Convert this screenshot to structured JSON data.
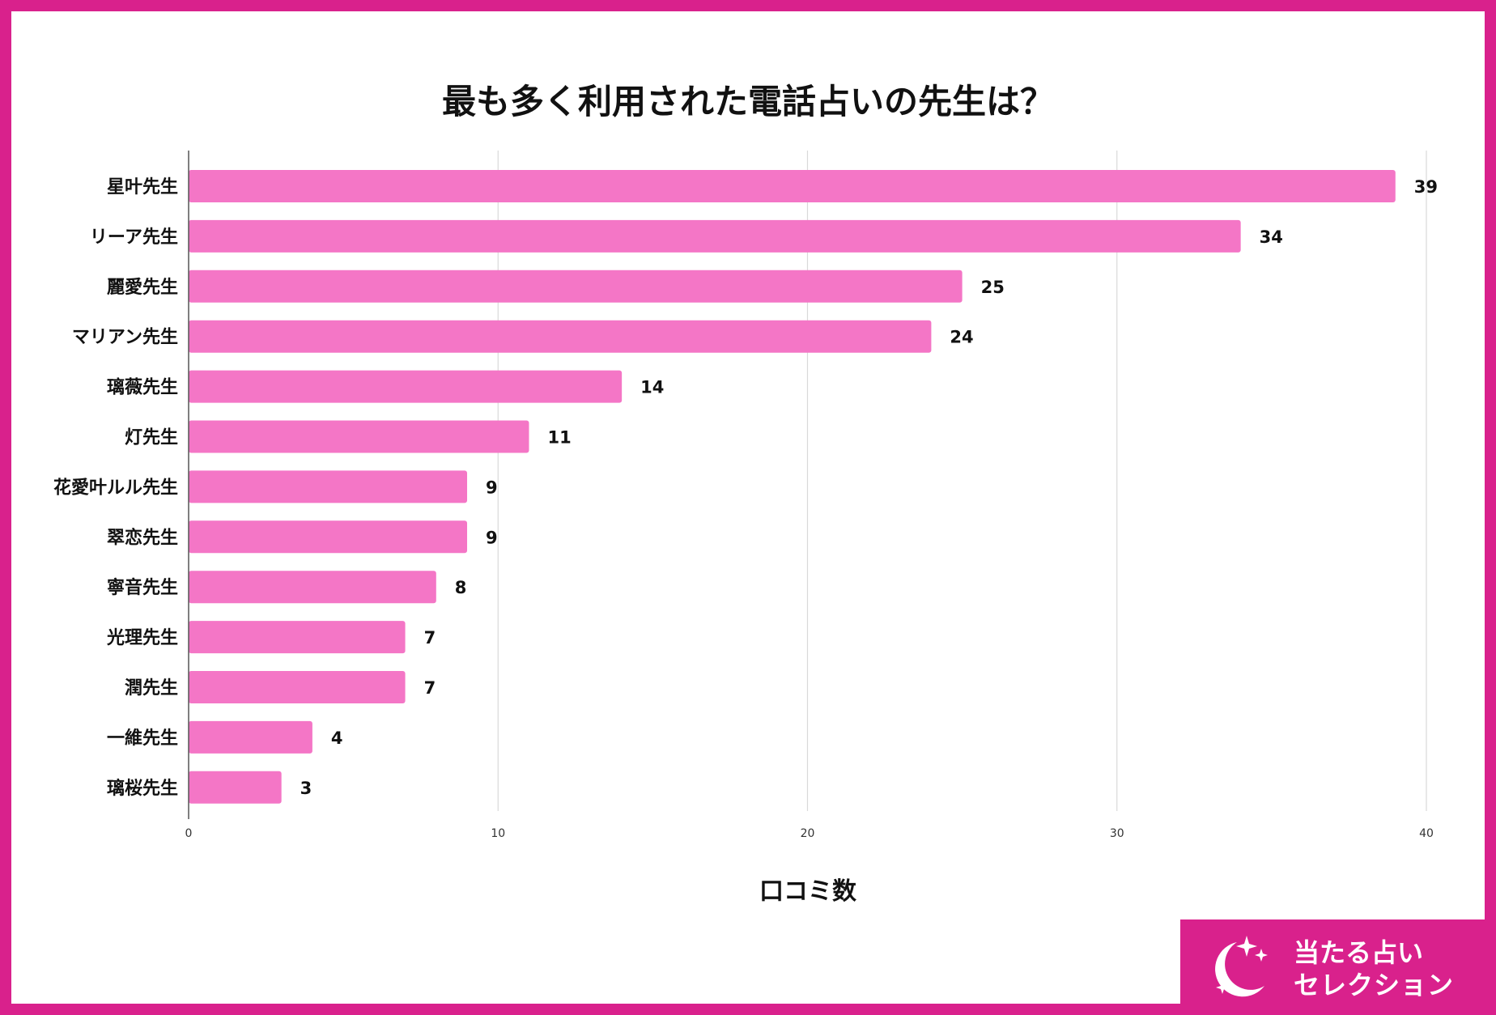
{
  "title": "最も多く利用された電話占いの先生は？",
  "brand": {
    "line1": "当たる占い",
    "line2": "セレクション",
    "icon": "moon-stars-icon"
  },
  "colors": {
    "bar": "#f476c6",
    "frame": "#d9218c",
    "grid": "#d9d9d9",
    "axis": "#555555"
  },
  "chart_data": {
    "type": "bar",
    "orientation": "horizontal",
    "title": "最も多く利用された電話占いの先生は？",
    "xlabel": "口コミ数",
    "ylabel": "",
    "xlim": [
      0,
      40
    ],
    "xticks": [
      0,
      10,
      20,
      30,
      40
    ],
    "grid": true,
    "categories": [
      "星叶先生",
      "リーア先生",
      "麗愛先生",
      "マリアン先生",
      "璃薇先生",
      "灯先生",
      "花愛叶ルル先生",
      "翠恋先生",
      "寧音先生",
      "光理先生",
      "潤先生",
      "一維先生",
      "璃桜先生"
    ],
    "values": [
      39,
      34,
      25,
      24,
      14,
      11,
      9,
      9,
      8,
      7,
      7,
      4,
      3
    ]
  }
}
